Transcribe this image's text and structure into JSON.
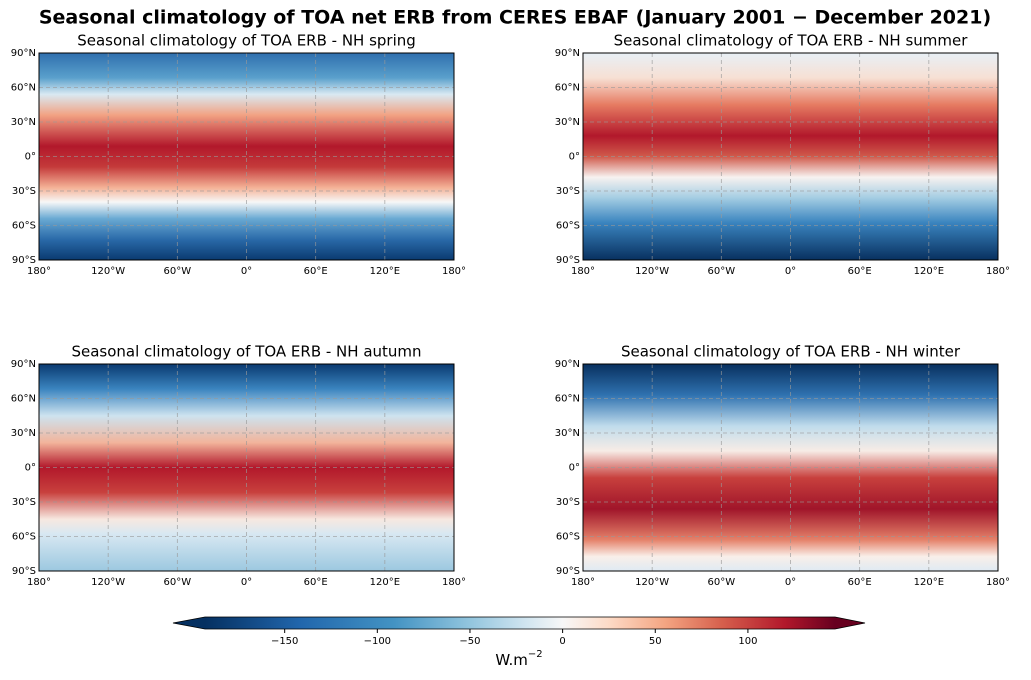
{
  "title": "Seasonal climatology of TOA net ERB from CERES EBAF (January 2001 − December 2021)",
  "panels": [
    {
      "title": "Seasonal climatology of TOA ERB - NH spring"
    },
    {
      "title": "Seasonal climatology of TOA ERB - NH summer"
    },
    {
      "title": "Seasonal climatology of TOA ERB - NH autumn"
    },
    {
      "title": "Seasonal climatology of TOA ERB - NH winter"
    }
  ],
  "lonlim": [
    -180,
    180
  ],
  "latlim": [
    -90,
    90
  ],
  "lon_ticks": [
    {
      "value": -180,
      "label": "180°"
    },
    {
      "value": -120,
      "label": "120°W"
    },
    {
      "value": -60,
      "label": "60°W"
    },
    {
      "value": 0,
      "label": "0°"
    },
    {
      "value": 60,
      "label": "60°E"
    },
    {
      "value": 120,
      "label": "120°E"
    },
    {
      "value": 180,
      "label": "180°"
    }
  ],
  "lat_ticks": [
    {
      "value": 90,
      "label": "90°N"
    },
    {
      "value": 60,
      "label": "60°N"
    },
    {
      "value": 30,
      "label": "30°N"
    },
    {
      "value": 0,
      "label": "0°"
    },
    {
      "value": -30,
      "label": "30°S"
    },
    {
      "value": -60,
      "label": "60°S"
    },
    {
      "value": -90,
      "label": "90°S"
    }
  ],
  "colorbar": {
    "lim": [
      -193,
      147
    ],
    "ticks": [
      {
        "value": -150,
        "label": "−150"
      },
      {
        "value": -100,
        "label": "−100"
      },
      {
        "value": -50,
        "label": "−50"
      },
      0,
      50,
      100
    ],
    "label": {
      "base": "W.m",
      "sup": "−2"
    }
  }
}
